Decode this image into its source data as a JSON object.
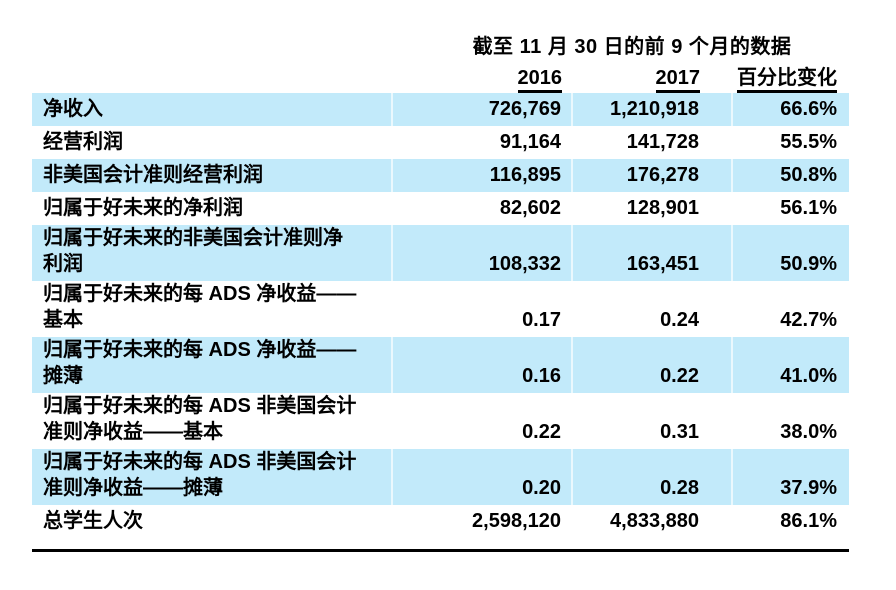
{
  "table": {
    "title": "截至 11 月 30 日的前 9 个月的数据",
    "columns": [
      "2016",
      "2017",
      "百分比变化"
    ],
    "rows": [
      {
        "label": "净收入",
        "v2016": "726,769",
        "v2017": "1,210,918",
        "pct": "66.6%"
      },
      {
        "label": "经营利润",
        "v2016": "91,164",
        "v2017": "141,728",
        "pct": "55.5%"
      },
      {
        "label": "非美国会计准则经营利润",
        "v2016": "116,895",
        "v2017": "176,278",
        "pct": "50.8%"
      },
      {
        "label": "归属于好未来的净利润",
        "v2016": "82,602",
        "v2017": "128,901",
        "pct": "56.1%"
      },
      {
        "label": "归属于好未来的非美国会计准则净\n利润",
        "v2016": "108,332",
        "v2017": "163,451",
        "pct": "50.9%"
      },
      {
        "label": "归属于好未来的每 ADS 净收益——\n基本",
        "v2016": "0.17",
        "v2017": "0.24",
        "pct": "42.7%"
      },
      {
        "label": "归属于好未来的每 ADS 净收益——\n摊薄",
        "v2016": "0.16",
        "v2017": "0.22",
        "pct": "41.0%"
      },
      {
        "label": "归属于好未来的每 ADS 非美国会计\n准则净收益——基本",
        "v2016": "0.22",
        "v2017": "0.31",
        "pct": "38.0%"
      },
      {
        "label": "归属于好未来的每 ADS 非美国会计\n准则净收益——摊薄",
        "v2016": "0.20",
        "v2017": "0.28",
        "pct": "37.9%"
      },
      {
        "label": "总学生人次",
        "v2016": "2,598,120",
        "v2017": "4,833,880",
        "pct": "86.1%"
      }
    ]
  },
  "colors": {
    "row_highlight": "#C2EAFA",
    "text": "#000000",
    "rule": "#000000"
  }
}
